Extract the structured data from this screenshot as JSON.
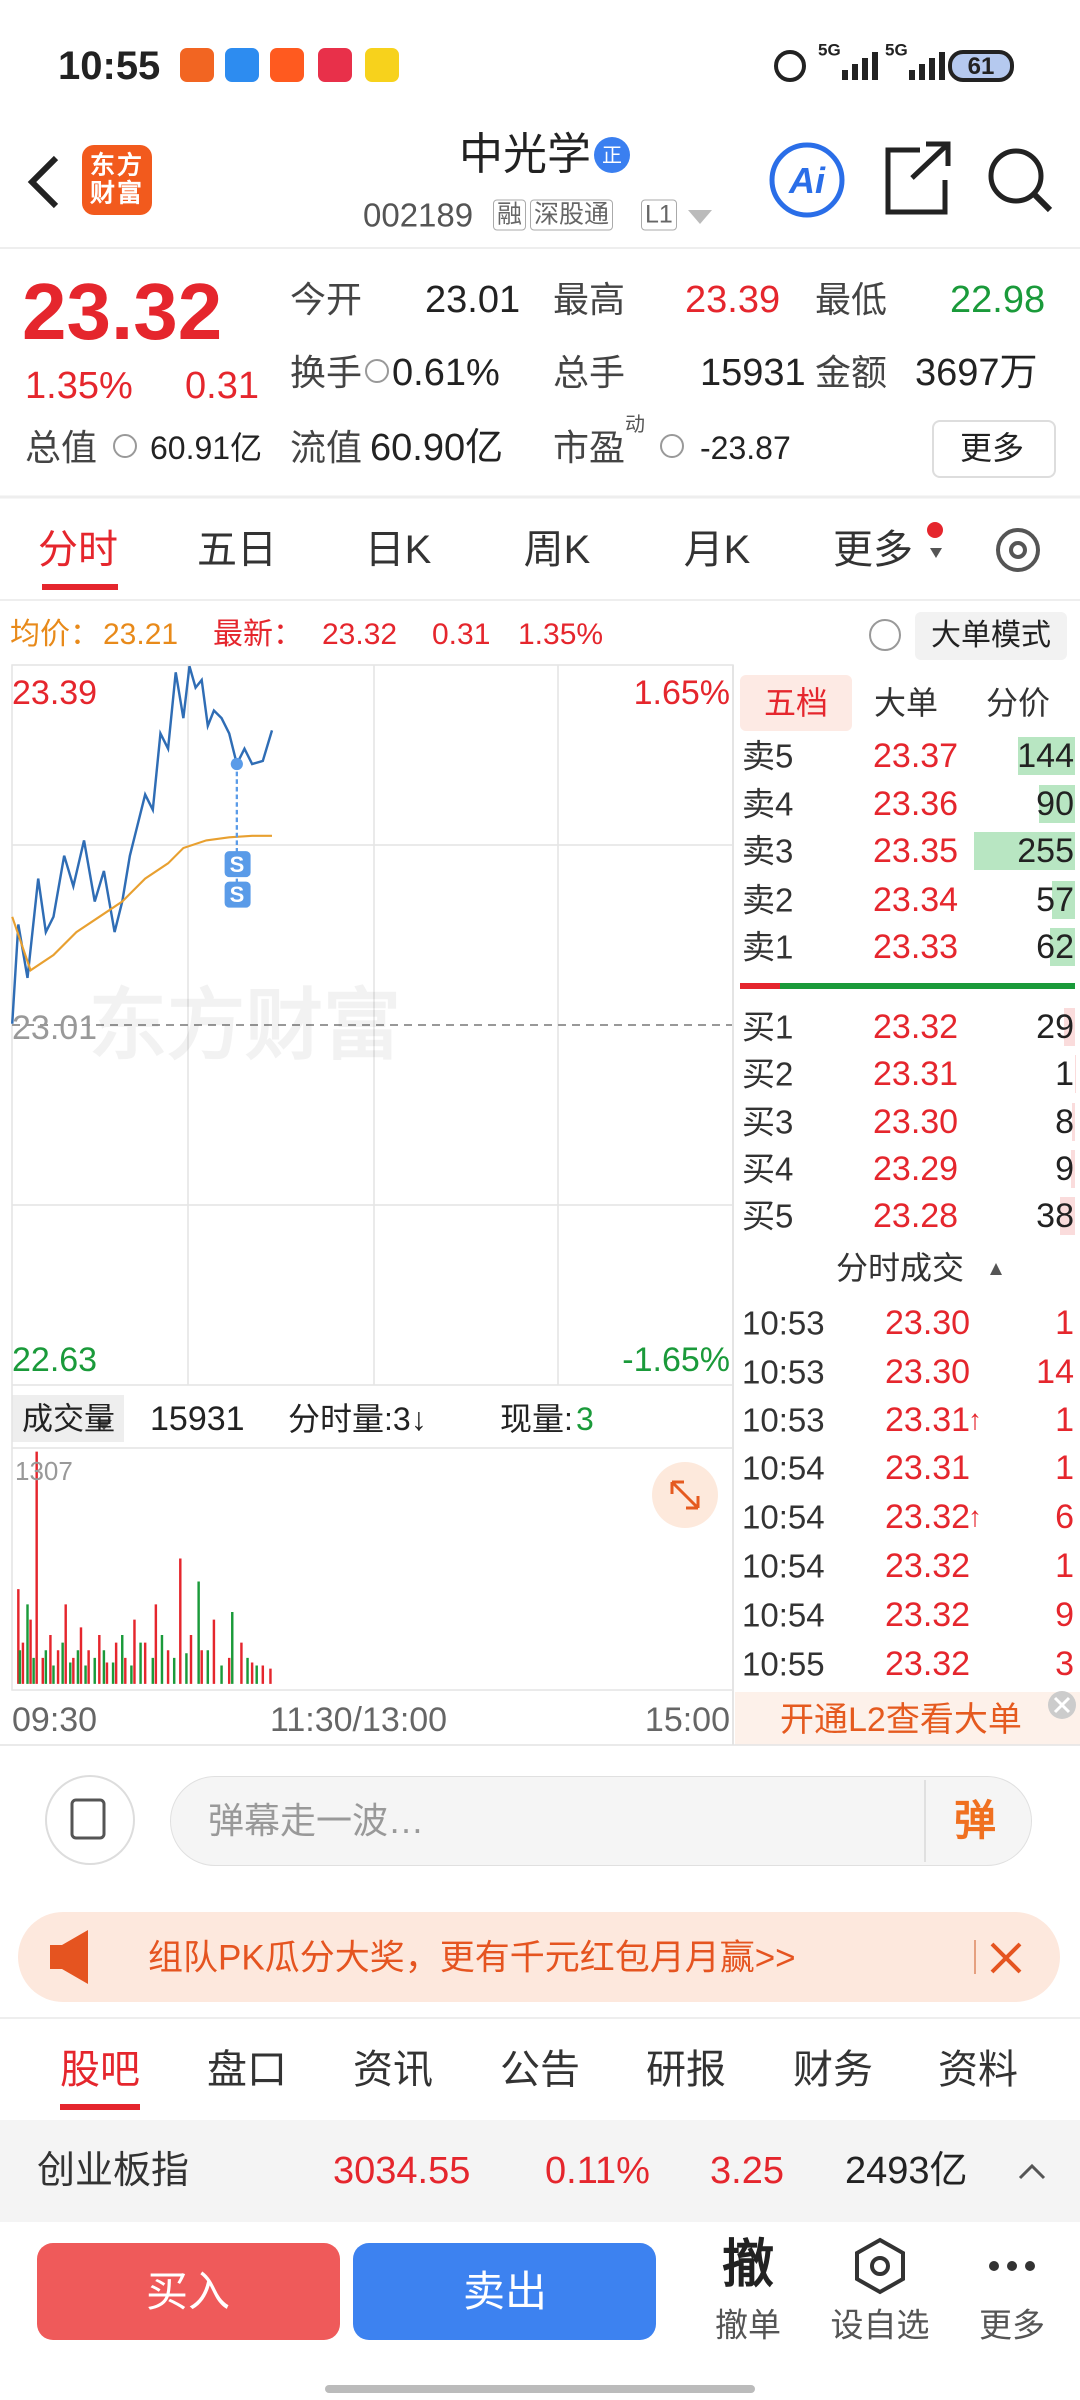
{
  "status_bar": {
    "time": "10:55",
    "network_1": "5G",
    "network_2": "5G",
    "battery": "61"
  },
  "header": {
    "logo": "东方财富",
    "title": "中光学",
    "badge": "正",
    "code": "002189",
    "tags": [
      "融",
      "深股通",
      "L1"
    ],
    "ai_button": "Ai"
  },
  "quote": {
    "price": "23.32",
    "change_pct": "1.35%",
    "change": "0.31",
    "fields": [
      {
        "label": "今开",
        "value": "23.01"
      },
      {
        "label": "最高",
        "value": "23.39"
      },
      {
        "label": "最低",
        "value": "22.98"
      },
      {
        "label": "换手",
        "value": "0.61%"
      },
      {
        "label": "总手",
        "value": "15931"
      },
      {
        "label": "金额",
        "value": "3697万"
      },
      {
        "label": "总值",
        "value": "60.91亿"
      },
      {
        "label": "流值",
        "value": "60.90亿"
      },
      {
        "label": "市盈",
        "value": "-23.87"
      }
    ],
    "pe_note": "动",
    "more": "更多"
  },
  "chart_tabs": [
    "分时",
    "五日",
    "日K",
    "周K",
    "月K",
    "更多"
  ],
  "info_line": {
    "avg_label": "均价：",
    "avg": "23.21",
    "latest_label": "最新：",
    "latest": "23.32",
    "change": "0.31",
    "change_pct": "1.35%",
    "mode": "大单模式"
  },
  "intraday": {
    "high": "23.39",
    "high_pct": "1.65%",
    "open": "23.01",
    "low": "22.63",
    "low_pct": "-1.65%",
    "markers": [
      "S",
      "S"
    ],
    "watermark": "东方财富"
  },
  "volume": {
    "selector": "成交量",
    "total": "15931",
    "per_minute": "分时量:3↓",
    "current_label": "现量:",
    "current": "3",
    "max": "1307"
  },
  "time_axis": [
    "09:30",
    "11:30/13:00",
    "15:00"
  ],
  "order_book": {
    "tabs": [
      "五档",
      "大单",
      "分价"
    ],
    "sell": [
      {
        "label": "卖5",
        "price": "23.37",
        "volume": 144
      },
      {
        "label": "卖4",
        "price": "23.36",
        "volume": 90
      },
      {
        "label": "卖3",
        "price": "23.35",
        "volume": 255
      },
      {
        "label": "卖2",
        "price": "23.34",
        "volume": 57
      },
      {
        "label": "卖1",
        "price": "23.33",
        "volume": 62
      }
    ],
    "buy": [
      {
        "label": "买1",
        "price": "23.32",
        "volume": 29
      },
      {
        "label": "买2",
        "price": "23.31",
        "volume": 1
      },
      {
        "label": "买3",
        "price": "23.30",
        "volume": 8
      },
      {
        "label": "买4",
        "price": "23.29",
        "volume": 9
      },
      {
        "label": "买5",
        "price": "23.28",
        "volume": 38
      }
    ],
    "trades_title": "分时成交",
    "trades": [
      {
        "time": "10:53",
        "price": "23.30",
        "volume": "1"
      },
      {
        "time": "10:53",
        "price": "23.30",
        "volume": "14"
      },
      {
        "time": "10:53",
        "price": "23.31",
        "tick": "↑",
        "volume": "1"
      },
      {
        "time": "10:54",
        "price": "23.31",
        "volume": "1"
      },
      {
        "time": "10:54",
        "price": "23.32",
        "tick": "↑",
        "volume": "6"
      },
      {
        "time": "10:54",
        "price": "23.32",
        "volume": "1"
      },
      {
        "time": "10:54",
        "price": "23.32",
        "volume": "9"
      },
      {
        "time": "10:55",
        "price": "23.32",
        "volume": "3"
      }
    ],
    "promo": "开通L2查看大单"
  },
  "comment": {
    "placeholder": "弹幕走一波…",
    "danmaku": "弹"
  },
  "banner": "组队PK瓜分大奖，更有千元红包月月赢>>",
  "section_tabs": [
    "股吧",
    "盘口",
    "资讯",
    "公告",
    "研报",
    "财务",
    "资料"
  ],
  "index": {
    "name": "创业板指",
    "value": "3034.55",
    "change_pct": "0.11%",
    "change": "3.25",
    "amount": "2493亿"
  },
  "bottom_bar": {
    "buy": "买入",
    "sell": "卖出",
    "cancel_icon": "撤",
    "cancel": "撤单",
    "watch": "设自选",
    "more": "更多"
  }
}
